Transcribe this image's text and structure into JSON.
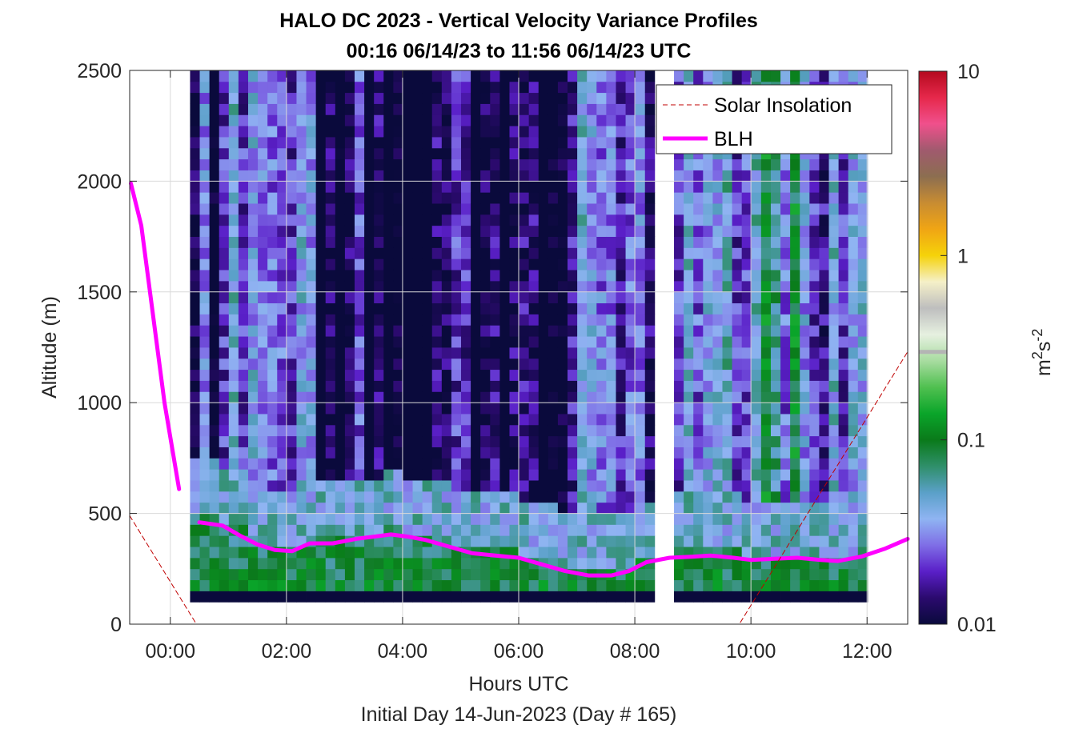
{
  "chart_data": {
    "type": "heatmap",
    "title": "HALO DC 2023 - Vertical Velocity Variance Profiles",
    "subtitle": "00:16 06/14/23 to 11:56 06/14/23  UTC",
    "xlabel": "Hours UTC",
    "xlabel2": "Initial Day 14-Jun-2023 (Day # 165)",
    "ylabel": "Altitude (m)",
    "xlim": [
      -0.7,
      12.7
    ],
    "ylim": [
      0,
      2500
    ],
    "x_ticks": [
      {
        "value": 0,
        "label": "00:00"
      },
      {
        "value": 2,
        "label": "02:00"
      },
      {
        "value": 4,
        "label": "04:00"
      },
      {
        "value": 6,
        "label": "06:00"
      },
      {
        "value": 8,
        "label": "08:00"
      },
      {
        "value": 10,
        "label": "10:00"
      },
      {
        "value": 12,
        "label": "12:00"
      }
    ],
    "y_ticks": [
      0,
      500,
      1000,
      1500,
      2000,
      2500
    ],
    "grid": true,
    "colorbar": {
      "scale": "log",
      "range": [
        0.01,
        10
      ],
      "ticks": [
        {
          "value": 0.01,
          "label": "0.01"
        },
        {
          "value": 0.1,
          "label": "0.1"
        },
        {
          "value": 1,
          "label": "1"
        },
        {
          "value": 10,
          "label": "10"
        }
      ],
      "unit_base": "m",
      "unit_exp1": "2",
      "unit_mid": "s",
      "unit_exp2": "-2",
      "colors": [
        "#0a0a3c",
        "#2b0a6e",
        "#5a1fc8",
        "#7f6ee6",
        "#8fb4f2",
        "#5aa0c8",
        "#2f8f6a",
        "#0a7a1a",
        "#0aa52a",
        "#50c050",
        "#a8dca0",
        "#e6f0e0",
        "#bebebe",
        "#f5f0c8",
        "#f5d20a",
        "#f0a514",
        "#c88c32",
        "#8c6e50",
        "#a05a6e",
        "#f0508c",
        "#e6284b",
        "#b40a1e"
      ],
      "marker_value": 0.3
    },
    "heatmap": {
      "x_start": 0.34,
      "x_step": 0.1667,
      "n_columns": 70,
      "y_start": 100,
      "y_step": 50,
      "n_rows": 48,
      "gap_columns": [
        48,
        49
      ],
      "missing_column_x": 0.14,
      "surface_row_value": 0.01,
      "note_values": "log10 variance (m2 s-2), range -2 to 1"
    },
    "legend": {
      "position": "top-right",
      "entries": [
        {
          "name": "Solar Insolation",
          "style": "dashed",
          "color": "#c00000"
        },
        {
          "name": "BLH",
          "style": "solid",
          "color": "#ff00ff"
        }
      ]
    },
    "series": [
      {
        "name": "BLH",
        "color": "#ff00ff",
        "segments": [
          [
            [
              -0.68,
              1990
            ],
            [
              -0.5,
              1800
            ],
            [
              -0.3,
              1400
            ],
            [
              -0.1,
              1000
            ],
            [
              0.15,
              610
            ]
          ],
          [
            [
              0.5,
              460
            ],
            [
              0.9,
              445
            ],
            [
              1.2,
              400
            ],
            [
              1.5,
              360
            ],
            [
              1.8,
              335
            ],
            [
              2.1,
              330
            ],
            [
              2.4,
              365
            ],
            [
              2.8,
              365
            ],
            [
              3.2,
              385
            ],
            [
              3.5,
              395
            ],
            [
              3.8,
              405
            ],
            [
              4.1,
              395
            ],
            [
              4.4,
              380
            ],
            [
              4.8,
              350
            ],
            [
              5.2,
              320
            ],
            [
              5.6,
              310
            ],
            [
              6.0,
              300
            ],
            [
              6.4,
              270
            ],
            [
              6.8,
              240
            ],
            [
              7.2,
              220
            ],
            [
              7.6,
              220
            ],
            [
              7.9,
              240
            ],
            [
              8.2,
              280
            ],
            [
              8.6,
              300
            ],
            [
              9.0,
              305
            ],
            [
              9.3,
              310
            ],
            [
              9.7,
              300
            ],
            [
              10.0,
              290
            ],
            [
              10.4,
              295
            ],
            [
              10.8,
              300
            ],
            [
              11.2,
              290
            ],
            [
              11.5,
              285
            ],
            [
              11.9,
              305
            ],
            [
              12.3,
              340
            ],
            [
              12.7,
              385
            ]
          ]
        ]
      },
      {
        "name": "Solar Insolation",
        "color": "#c00000",
        "segments": [
          [
            [
              -0.7,
              490
            ],
            [
              0.45,
              0
            ],
            [
              9.8,
              0
            ],
            [
              12.7,
              1230
            ]
          ]
        ]
      }
    ]
  }
}
